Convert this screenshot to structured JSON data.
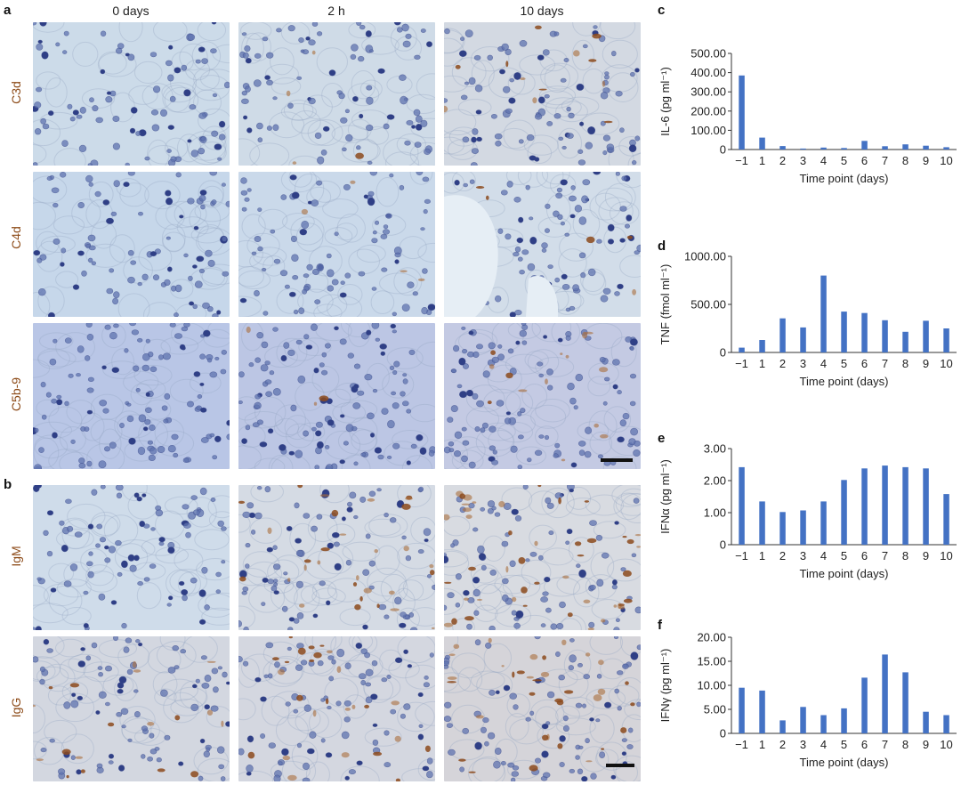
{
  "panels": {
    "a": "a",
    "b": "b",
    "c": "c",
    "d": "d",
    "e": "e",
    "f": "f"
  },
  "columns": [
    "0 days",
    "2 h",
    "10 days"
  ],
  "rows_a": [
    "C3d",
    "C4d",
    "C5b-9"
  ],
  "rows_b": [
    "IgM",
    "IgG"
  ],
  "colors": {
    "bar": "#4472c4",
    "stain_label": "#8c4a17",
    "tissue_bg": "#c9d8e8",
    "nucleus": "#4a5fa3",
    "brown": "#8a4a1c"
  },
  "chart_data": [
    {
      "panel": "c",
      "type": "bar",
      "categories": [
        "−1",
        "1",
        "2",
        "3",
        "4",
        "5",
        "6",
        "7",
        "8",
        "9",
        "10"
      ],
      "values": [
        385,
        62,
        18,
        5,
        10,
        8,
        45,
        17,
        27,
        20,
        12
      ],
      "ylabel": "IL-6 (pg ml⁻¹)",
      "xlabel": "Time point (days)",
      "ylim": [
        0,
        500
      ],
      "yticks": [
        "0",
        "100.00",
        "200.00",
        "300.00",
        "400.00",
        "500.00"
      ]
    },
    {
      "panel": "d",
      "type": "bar",
      "categories": [
        "−1",
        "1",
        "2",
        "3",
        "4",
        "5",
        "6",
        "7",
        "8",
        "9",
        "10"
      ],
      "values": [
        50,
        130,
        355,
        260,
        800,
        425,
        410,
        335,
        215,
        330,
        250
      ],
      "ylabel": "TNF (fmol ml⁻¹)",
      "xlabel": "Time point (days)",
      "ylim": [
        0,
        1000
      ],
      "yticks": [
        "0",
        "500.00",
        "1000.00"
      ]
    },
    {
      "panel": "e",
      "type": "bar",
      "categories": [
        "−1",
        "1",
        "2",
        "3",
        "4",
        "5",
        "6",
        "7",
        "8",
        "9",
        "10"
      ],
      "values": [
        2.42,
        1.35,
        1.02,
        1.07,
        1.35,
        2.02,
        2.38,
        2.47,
        2.42,
        2.38,
        1.58
      ],
      "ylabel": "IFNα (pg ml⁻¹)",
      "xlabel": "Time point (days)",
      "ylim": [
        0,
        3
      ],
      "yticks": [
        "0",
        "1.00",
        "2.00",
        "3.00"
      ]
    },
    {
      "panel": "f",
      "type": "bar",
      "categories": [
        "−1",
        "1",
        "2",
        "3",
        "4",
        "5",
        "6",
        "7",
        "8",
        "9",
        "10"
      ],
      "values": [
        9.5,
        8.9,
        2.7,
        5.5,
        3.8,
        5.2,
        11.6,
        16.4,
        12.7,
        4.5,
        3.8
      ],
      "ylabel": "IFNγ (pg ml⁻¹)",
      "xlabel": "Time point (days)",
      "ylim": [
        0,
        20
      ],
      "yticks": [
        "0",
        "5.00",
        "10.00",
        "15.00",
        "20.00"
      ]
    }
  ]
}
